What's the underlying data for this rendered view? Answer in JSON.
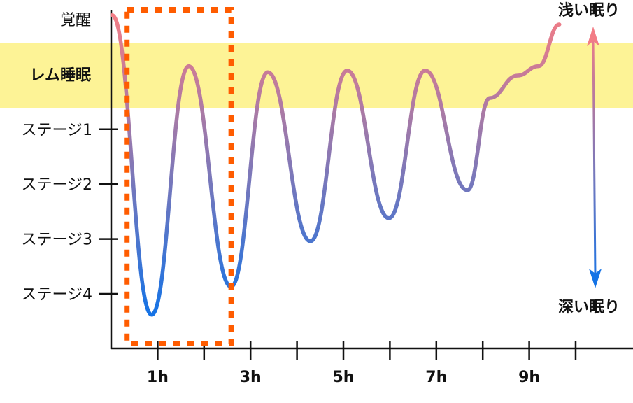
{
  "chart_data": {
    "type": "line",
    "title": "",
    "xlabel": "",
    "ylabel": "",
    "x_tick_labels": [
      "1h",
      "3h",
      "5h",
      "7h",
      "9h"
    ],
    "x_ticks_hours": [
      1,
      2,
      3,
      4,
      5,
      6,
      7,
      8,
      9,
      10
    ],
    "xlim": [
      0,
      11.2
    ],
    "y_categories": [
      "覚醒",
      "レム睡眠",
      "ステージ1",
      "ステージ2",
      "ステージ3",
      "ステージ4"
    ],
    "y_highlight_category": "レム睡眠",
    "series": [
      {
        "x": [
          0.02,
          0.87,
          1.67,
          2.58,
          3.37,
          4.29,
          5.08,
          5.98,
          6.76,
          7.67,
          8.15,
          8.75,
          9.2,
          9.65
        ],
        "y": [
          -0.08,
          5.38,
          0.85,
          4.87,
          0.96,
          4.04,
          0.93,
          3.62,
          0.93,
          3.11,
          1.43,
          1.02,
          0.85,
          0.09
        ]
      }
    ],
    "highlight_box_hours": [
      0.35,
      2.6
    ],
    "arrow_labels": {
      "top": "浅い眠り",
      "bottom": "深い眠り"
    },
    "colors": {
      "light_sleep": "#f27d86",
      "deep_sleep": "#1473e6",
      "rem_band": "#fdf396",
      "highlight_box": "#ff5c00",
      "axis": "#111111"
    }
  }
}
